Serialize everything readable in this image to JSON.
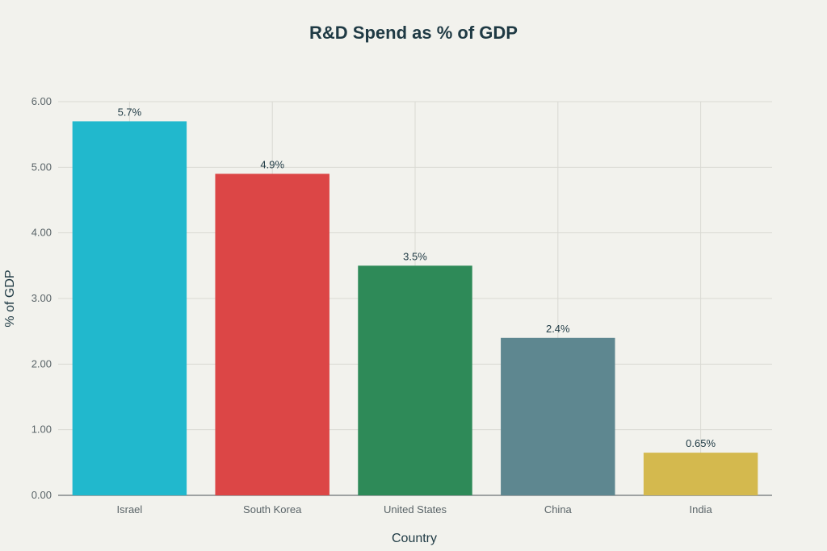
{
  "chart_data": {
    "type": "bar",
    "title": "R&D Spend as % of GDP",
    "xlabel": "Country",
    "ylabel": "% of GDP",
    "categories": [
      "Israel",
      "South Korea",
      "United States",
      "China",
      "India"
    ],
    "values": [
      5.7,
      4.9,
      3.5,
      2.4,
      0.65
    ],
    "data_labels": [
      "5.7%",
      "4.9%",
      "3.5%",
      "2.4%",
      "0.65%"
    ],
    "colors": [
      "#21b8cd",
      "#dc4646",
      "#2e8a58",
      "#5e8790",
      "#d4b94e"
    ],
    "ylim": [
      0,
      6
    ],
    "yticks": [
      "0.00",
      "1.00",
      "2.00",
      "3.00",
      "4.00",
      "5.00",
      "6.00"
    ],
    "grid": true,
    "legend": "none"
  }
}
